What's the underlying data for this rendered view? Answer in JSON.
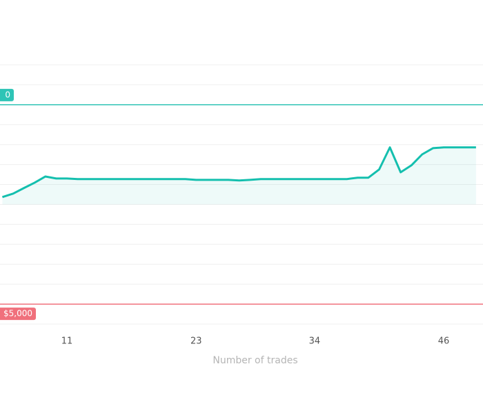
{
  "chart_data": {
    "type": "line",
    "x_label": "Number of trades",
    "x": [
      5,
      6,
      7,
      8,
      9,
      10,
      11,
      12,
      13,
      14,
      15,
      16,
      17,
      18,
      19,
      20,
      21,
      22,
      23,
      24,
      25,
      26,
      27,
      28,
      29,
      30,
      31,
      32,
      33,
      34,
      35,
      36,
      37,
      38,
      39,
      40,
      41,
      42,
      43,
      44,
      45,
      46,
      47,
      48,
      49
    ],
    "series": [
      {
        "color": "#14bfae",
        "values": [
          6.37,
          6.54,
          6.82,
          7.09,
          7.4,
          7.3,
          7.3,
          7.27,
          7.27,
          7.27,
          7.27,
          7.27,
          7.27,
          7.27,
          7.27,
          7.27,
          7.27,
          7.27,
          7.23,
          7.23,
          7.23,
          7.23,
          7.2,
          7.23,
          7.27,
          7.27,
          7.27,
          7.27,
          7.27,
          7.27,
          7.27,
          7.27,
          7.27,
          7.34,
          7.34,
          7.75,
          8.86,
          7.61,
          7.96,
          8.51,
          8.82,
          8.86,
          8.86,
          8.86,
          8.86
        ]
      }
    ],
    "xlim": [
      4.78,
      49.65
    ],
    "xticks": [
      11,
      23,
      34,
      46
    ],
    "ylim": [
      0,
      13
    ],
    "grid_values": [
      0,
      1,
      2,
      3,
      4,
      5,
      6,
      7,
      8,
      9,
      10,
      11,
      12,
      13
    ],
    "area_base": 6,
    "reference_lines": [
      {
        "value": 11,
        "label": "0",
        "color": "#2ec4b6"
      },
      {
        "value": 1,
        "label": "$5,000",
        "color": "#f0707c"
      }
    ]
  }
}
